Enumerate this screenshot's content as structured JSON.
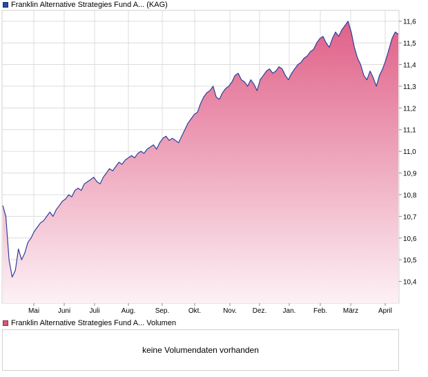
{
  "legend": {
    "price_label": "Franklin Alternative Strategies Fund A... (KAG)",
    "volume_label": "Franklin Alternative Strategies Fund A... Volumen"
  },
  "volume_panel": {
    "message": "keine Volumendaten vorhanden"
  },
  "colors": {
    "line": "#2b3f9a",
    "fill_top": "#e06088",
    "fill_bottom": "#fdf1f5",
    "grid": "#dcdcdc",
    "price_swatch": "#1f4ea8",
    "volume_swatch": "#dd5577"
  },
  "chart_data": {
    "type": "area",
    "series": [
      {
        "name": "Franklin Alternative Strategies Fund A... (KAG)",
        "values": [
          10.75,
          10.7,
          10.5,
          10.42,
          10.45,
          10.55,
          10.5,
          10.53,
          10.58,
          10.6,
          10.63,
          10.65,
          10.67,
          10.68,
          10.7,
          10.72,
          10.7,
          10.73,
          10.75,
          10.77,
          10.78,
          10.8,
          10.79,
          10.82,
          10.83,
          10.82,
          10.85,
          10.86,
          10.87,
          10.88,
          10.86,
          10.85,
          10.88,
          10.9,
          10.92,
          10.91,
          10.93,
          10.95,
          10.94,
          10.96,
          10.97,
          10.98,
          10.97,
          10.99,
          11.0,
          10.99,
          11.01,
          11.02,
          11.03,
          11.01,
          11.04,
          11.06,
          11.07,
          11.05,
          11.06,
          11.05,
          11.04,
          11.07,
          11.1,
          11.13,
          11.15,
          11.17,
          11.18,
          11.22,
          11.25,
          11.27,
          11.28,
          11.3,
          11.25,
          11.24,
          11.27,
          11.29,
          11.3,
          11.32,
          11.35,
          11.36,
          11.33,
          11.32,
          11.3,
          11.33,
          11.31,
          11.28,
          11.33,
          11.35,
          11.37,
          11.38,
          11.36,
          11.37,
          11.39,
          11.38,
          11.35,
          11.33,
          11.36,
          11.38,
          11.4,
          11.41,
          11.43,
          11.44,
          11.46,
          11.47,
          11.5,
          11.52,
          11.53,
          11.5,
          11.48,
          11.52,
          11.55,
          11.53,
          11.56,
          11.58,
          11.6,
          11.55,
          11.48,
          11.43,
          11.4,
          11.35,
          11.33,
          11.37,
          11.34,
          11.3,
          11.35,
          11.38,
          11.42,
          11.47,
          11.52,
          11.55,
          11.54
        ]
      }
    ],
    "x_tick_labels": [
      "Mai",
      "Juni",
      "Juli",
      "Aug.",
      "Sep.",
      "Okt.",
      "Nov.",
      "Dez.",
      "Jan.",
      "Feb.",
      "März",
      "April"
    ],
    "y_tick_labels": [
      "10,4",
      "10,5",
      "10,6",
      "10,7",
      "10,8",
      "10,9",
      "11,0",
      "11,1",
      "11,2",
      "11,3",
      "11,4",
      "11,5",
      "11,6"
    ],
    "y_ticks": [
      10.4,
      10.5,
      10.6,
      10.7,
      10.8,
      10.9,
      11.0,
      11.1,
      11.2,
      11.3,
      11.4,
      11.5,
      11.6
    ],
    "ylim": [
      10.3,
      11.65
    ],
    "grid": true,
    "axis_position": "right"
  }
}
